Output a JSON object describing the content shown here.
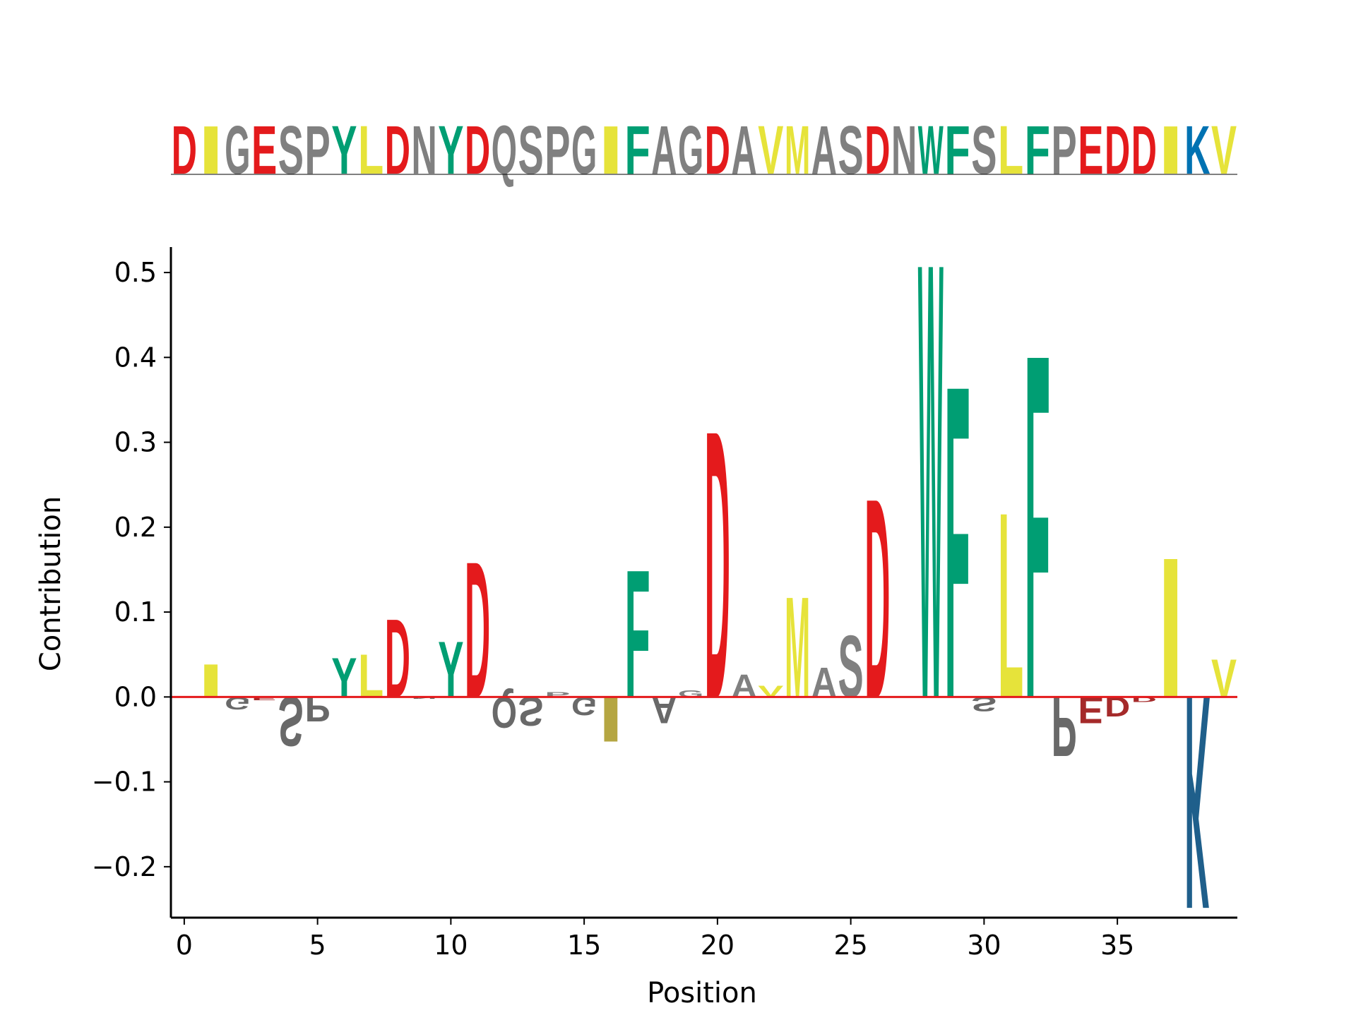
{
  "chart_data": {
    "type": "sequence-logo",
    "sequence": "DIGESPYLDNYDQSPGIFAGDAVMASDNWFSLFPEDDIKV",
    "xlabel": "Position",
    "ylabel": "Contribution",
    "xlim": [
      -0.5,
      39.5
    ],
    "ylim": [
      -0.26,
      0.53
    ],
    "xticks": [
      "0",
      "5",
      "10",
      "15",
      "20",
      "25",
      "30",
      "35"
    ],
    "yticks": [
      "0.5",
      "0.4",
      "0.3",
      "0.2",
      "0.1",
      "0.0",
      "−0.1",
      "−0.2"
    ],
    "ytick_values": [
      0.5,
      0.4,
      0.3,
      0.2,
      0.1,
      0.0,
      -0.1,
      -0.2
    ],
    "xtick_values": [
      0,
      5,
      10,
      15,
      20,
      25,
      30,
      35
    ],
    "baseline_color": "#e41a1c",
    "colors": {
      "acidic": "#e41a1c",
      "hydrophobic": "#e6e33a",
      "aromatic_polar": "#009e73",
      "neutral": "#808080",
      "basic": "#0072b2",
      "negative_acidic": "#a52a2a",
      "negative_neutral": "#696969",
      "negative_basic": "#1f5f8b",
      "negative_hydrophobic": "#b5a642"
    },
    "contributions": [
      {
        "pos": 0,
        "letter": "D",
        "value": 0.0
      },
      {
        "pos": 1,
        "letter": "I",
        "value": 0.04
      },
      {
        "pos": 2,
        "letter": "G",
        "value": -0.015
      },
      {
        "pos": 3,
        "letter": "E",
        "value": -0.004
      },
      {
        "pos": 4,
        "letter": "S",
        "value": -0.06
      },
      {
        "pos": 5,
        "letter": "P",
        "value": -0.03
      },
      {
        "pos": 6,
        "letter": "Y",
        "value": 0.048
      },
      {
        "pos": 7,
        "letter": "L",
        "value": 0.052
      },
      {
        "pos": 8,
        "letter": "D",
        "value": 0.095
      },
      {
        "pos": 9,
        "letter": "N",
        "value": -0.002
      },
      {
        "pos": 10,
        "letter": "Y",
        "value": 0.068
      },
      {
        "pos": 11,
        "letter": "D",
        "value": 0.165
      },
      {
        "pos": 12,
        "letter": "Q",
        "value": -0.038
      },
      {
        "pos": 13,
        "letter": "S",
        "value": -0.035
      },
      {
        "pos": 14,
        "letter": "P",
        "value": 0.006
      },
      {
        "pos": 15,
        "letter": "G",
        "value": -0.022
      },
      {
        "pos": 16,
        "letter": "I",
        "value": -0.055
      },
      {
        "pos": 17,
        "letter": "F",
        "value": 0.155
      },
      {
        "pos": 18,
        "letter": "A",
        "value": -0.032
      },
      {
        "pos": 19,
        "letter": "G",
        "value": 0.008
      },
      {
        "pos": 20,
        "letter": "D",
        "value": 0.325
      },
      {
        "pos": 21,
        "letter": "A",
        "value": 0.028
      },
      {
        "pos": 22,
        "letter": "V",
        "value": 0.014
      },
      {
        "pos": 23,
        "letter": "M",
        "value": 0.122
      },
      {
        "pos": 24,
        "letter": "A",
        "value": 0.036
      },
      {
        "pos": 25,
        "letter": "S",
        "value": 0.075
      },
      {
        "pos": 26,
        "letter": "D",
        "value": 0.242
      },
      {
        "pos": 27,
        "letter": "N",
        "value": 0.0
      },
      {
        "pos": 28,
        "letter": "W",
        "value": 0.53
      },
      {
        "pos": 29,
        "letter": "F",
        "value": 0.38
      },
      {
        "pos": 30,
        "letter": "S",
        "value": -0.017
      },
      {
        "pos": 31,
        "letter": "L",
        "value": 0.225
      },
      {
        "pos": 32,
        "letter": "F",
        "value": 0.418
      },
      {
        "pos": 33,
        "letter": "P",
        "value": -0.072
      },
      {
        "pos": 34,
        "letter": "E",
        "value": -0.032
      },
      {
        "pos": 35,
        "letter": "D",
        "value": -0.024
      },
      {
        "pos": 36,
        "letter": "D",
        "value": -0.006
      },
      {
        "pos": 37,
        "letter": "I",
        "value": 0.17
      },
      {
        "pos": 38,
        "letter": "K",
        "value": -0.26
      },
      {
        "pos": 39,
        "letter": "V",
        "value": 0.046
      }
    ]
  }
}
